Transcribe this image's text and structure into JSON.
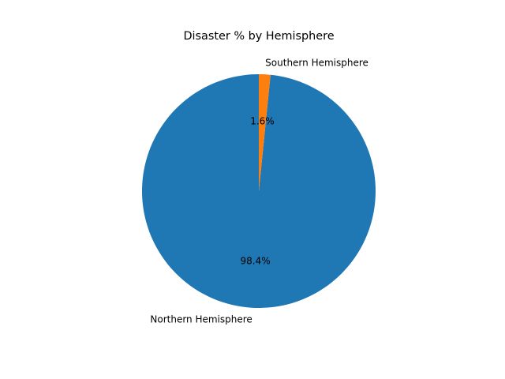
{
  "chart_data": {
    "type": "pie",
    "title": "Disaster % by Hemisphere",
    "labels": [
      "Northern Hemisphere",
      "Southern Hemisphere"
    ],
    "values": [
      98.4,
      1.6
    ],
    "percent_labels": [
      "98.4%",
      "1.6%"
    ],
    "colors": [
      "#1f77b4",
      "#ff7f0e"
    ],
    "start_angle_deg": 90,
    "direction": "counterclockwise",
    "legend": "none"
  }
}
